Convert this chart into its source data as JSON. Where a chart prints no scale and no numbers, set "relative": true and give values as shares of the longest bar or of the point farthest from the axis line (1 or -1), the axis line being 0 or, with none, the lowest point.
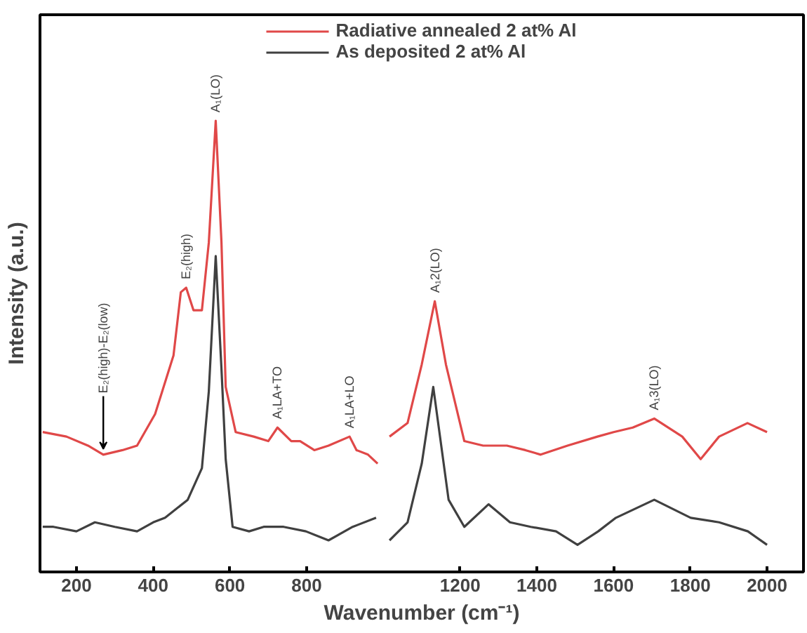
{
  "chart_data": {
    "type": "line",
    "relative": true,
    "ylabel": "Intensity (a.u.)",
    "xlabel": "Wavenumber (cm⁻¹)",
    "xlim": [
      105,
      2095
    ],
    "xticks": [
      200,
      400,
      600,
      800,
      1200,
      1400,
      1600,
      1800,
      2000
    ],
    "tick_labels": "x",
    "legend": "top",
    "series": [
      {
        "name": "Radiative annealed 2 at% Al",
        "color": "#e04848",
        "x": [
          112,
          174,
          230,
          270,
          320,
          358,
          405,
          453,
          472,
          486,
          505,
          527,
          545,
          563,
          578,
          589,
          615,
          662,
          700,
          724,
          760,
          783,
          820,
          857,
          912,
          930,
          960,
          985,
          1000,
          1016,
          1063,
          1100,
          1134,
          1163,
          1211,
          1260,
          1322,
          1370,
          1410,
          1480,
          1558,
          1600,
          1650,
          1706,
          1779,
          1827,
          1875,
          1949,
          2000
        ],
        "values": [
          0.31,
          0.3,
          0.28,
          0.26,
          0.27,
          0.28,
          0.35,
          0.48,
          0.62,
          0.63,
          0.58,
          0.58,
          0.73,
          1.0,
          0.73,
          0.41,
          0.31,
          0.3,
          0.29,
          0.32,
          0.29,
          0.29,
          0.27,
          0.28,
          0.3,
          0.27,
          0.26,
          0.24,
          null,
          0.3,
          0.33,
          0.46,
          0.6,
          0.46,
          0.29,
          0.28,
          0.28,
          0.27,
          0.26,
          0.28,
          0.3,
          0.31,
          0.32,
          0.34,
          0.3,
          0.25,
          0.3,
          0.33,
          0.31
        ]
      },
      {
        "name": "As deposited 2 at% Al",
        "color": "#404040",
        "x": [
          112,
          140,
          200,
          248,
          300,
          358,
          400,
          431,
          490,
          527,
          545,
          563,
          578,
          589,
          607,
          650,
          688,
          740,
          798,
          857,
          920,
          981,
          1000,
          1016,
          1063,
          1100,
          1130,
          1170,
          1211,
          1274,
          1330,
          1384,
          1450,
          1506,
          1560,
          1606,
          1706,
          1801,
          1875,
          1950,
          2000
        ],
        "values": [
          0.1,
          0.1,
          0.09,
          0.11,
          0.1,
          0.09,
          0.11,
          0.12,
          0.16,
          0.23,
          0.4,
          0.7,
          0.45,
          0.25,
          0.1,
          0.09,
          0.1,
          0.1,
          0.09,
          0.07,
          0.1,
          0.12,
          null,
          0.07,
          0.11,
          0.24,
          0.41,
          0.16,
          0.1,
          0.15,
          0.11,
          0.1,
          0.09,
          0.06,
          0.09,
          0.12,
          0.16,
          0.12,
          0.11,
          0.09,
          0.06
        ]
      }
    ],
    "annotations": [
      {
        "text": "E₂(high)-E₂(low)",
        "x": 270,
        "y": 0.26
      },
      {
        "text": "E₂(high)",
        "x": 486,
        "y": 0.63
      },
      {
        "text": "A₁(LO)",
        "x": 563,
        "y": 1.0
      },
      {
        "text": "A₁LA+TO",
        "x": 724,
        "y": 0.32
      },
      {
        "text": "A₁LA+LO",
        "x": 912,
        "y": 0.3
      },
      {
        "text": "A₁2(LO)",
        "x": 1134,
        "y": 0.6
      },
      {
        "text": "A₁3(LO)",
        "x": 1706,
        "y": 0.34
      }
    ]
  }
}
